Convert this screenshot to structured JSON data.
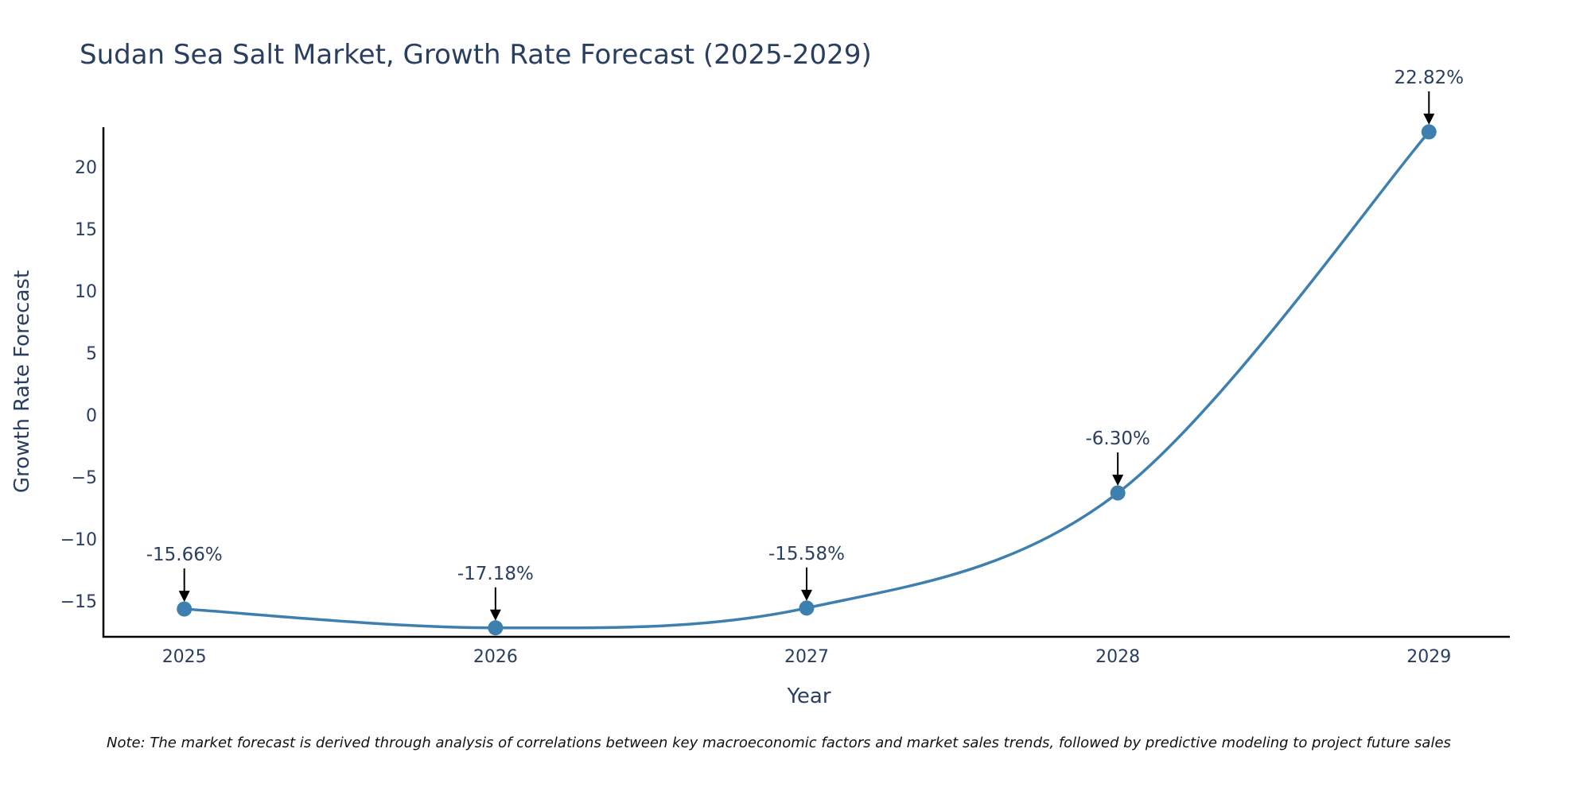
{
  "colors": {
    "line": "#3d7fae",
    "text": "#2a3f5f",
    "arrow": "#000000"
  },
  "chart_data": {
    "type": "line",
    "title": "Sudan Sea Salt Market, Growth Rate Forecast (2025-2029)",
    "xlabel": "Year",
    "ylabel": "Growth Rate Forecast",
    "x": [
      "2025",
      "2026",
      "2027",
      "2028",
      "2029"
    ],
    "values": [
      -15.66,
      -17.18,
      -15.58,
      -6.3,
      22.82
    ],
    "labels": [
      "-15.66%",
      "-17.18%",
      "-15.58%",
      "-6.30%",
      "22.82%"
    ],
    "yticks": [
      20,
      15,
      10,
      5,
      0,
      -5,
      -10,
      -15
    ],
    "ytick_labels": [
      "20",
      "15",
      "10",
      "5",
      "0",
      "−5",
      "−10",
      "−15"
    ],
    "ylim": [
      -17.9,
      23.2
    ],
    "xlim": [
      -0.26,
      4.26
    ],
    "grid": false,
    "smoothing": "spline"
  },
  "note": "Note: The market forecast is derived through analysis of correlations between key macroeconomic factors and market sales trends, followed by predictive modeling to project future sales"
}
